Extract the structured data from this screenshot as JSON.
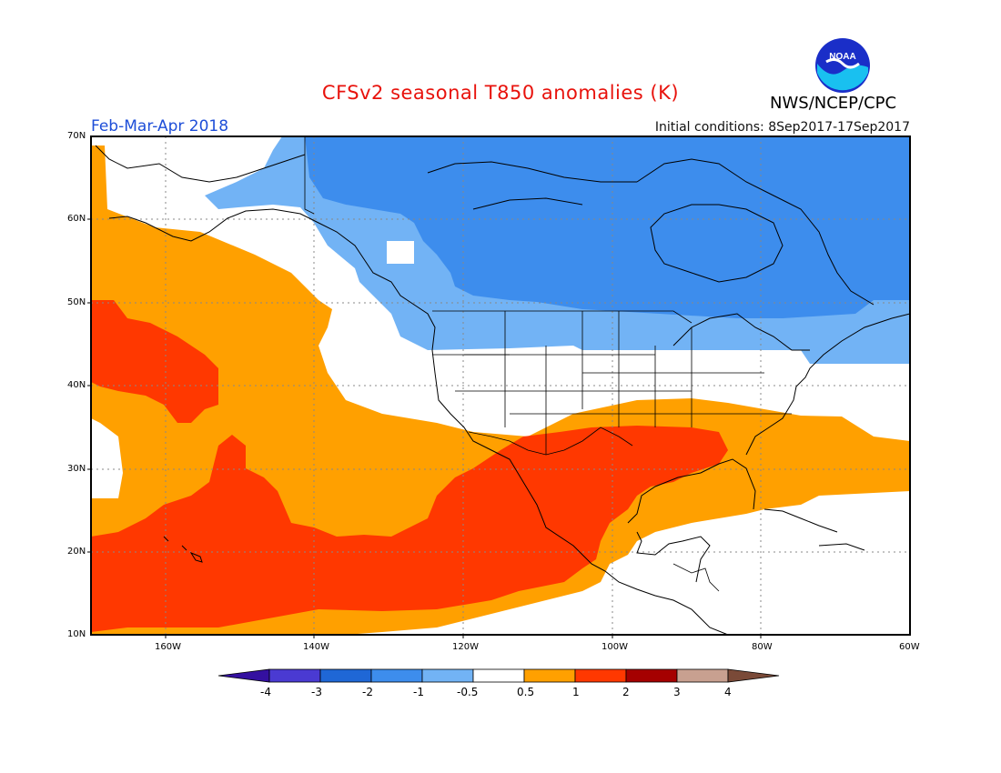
{
  "header": {
    "title": "CFSv2 seasonal T850 anomalies (K)",
    "agency": "NWS/NCEP/CPC",
    "logo_text": "NOAA",
    "period": "Feb-Mar-Apr 2018",
    "initial_conditions": "Initial conditions: 8Sep2017-17Sep2017"
  },
  "map": {
    "lat_labels": [
      "70N",
      "60N",
      "50N",
      "40N",
      "30N",
      "20N",
      "10N"
    ],
    "lon_labels": [
      "160W",
      "140W",
      "120W",
      "100W",
      "80W",
      "60W"
    ],
    "lat_values": [
      70,
      60,
      50,
      40,
      30,
      20,
      10
    ],
    "lon_values": [
      -160,
      -140,
      -120,
      -100,
      -80,
      -60
    ],
    "extent": {
      "lon_min": -170,
      "lon_max": -60,
      "lat_min": 10,
      "lat_max": 70
    }
  },
  "colorbar": {
    "labels": [
      "-4",
      "-3",
      "-2",
      "-1",
      "-0.5",
      "0.5",
      "1",
      "2",
      "3",
      "4"
    ],
    "colors": [
      "#3410a0",
      "#4a3ad2",
      "#1f67d6",
      "#3d8ded",
      "#72b3f5",
      "#ffffff",
      "#ffa000",
      "#ff3800",
      "#a50000",
      "#c8a090",
      "#7a4a38"
    ],
    "levels": [
      -4,
      -3,
      -2,
      -1,
      -0.5,
      0.5,
      1,
      2,
      3,
      4
    ]
  }
}
